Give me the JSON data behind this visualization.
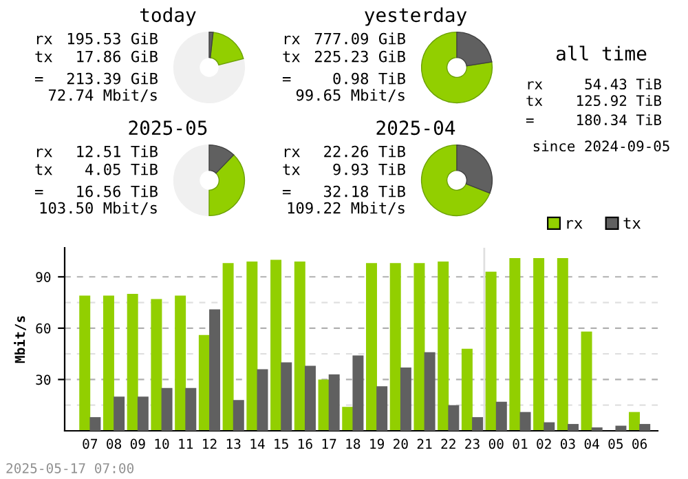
{
  "chart_data": [
    {
      "type": "donut",
      "title": "today",
      "categories": [
        null,
        null,
        null
      ],
      "values": [
        1.8,
        19.2,
        79
      ],
      "colors": [
        "#606060",
        "#92cf00",
        "#f0f0f0"
      ],
      "annotations": [
        "rx 195.53 GiB",
        "tx 17.86 GiB",
        "= 213.39 GiB",
        "72.74 Mbit/s"
      ]
    },
    {
      "type": "donut",
      "title": "yesterday",
      "categories": [
        null,
        null
      ],
      "values": [
        22.5,
        77.5
      ],
      "colors": [
        "#606060",
        "#92cf00"
      ],
      "annotations": [
        "rx 777.09 GiB",
        "tx 225.23 GiB",
        "= 0.98 TiB",
        "99.65 Mbit/s"
      ]
    },
    {
      "type": "other",
      "title": "all time",
      "annotations": [
        "rx 54.43 TiB",
        "tx 125.92 TiB",
        "= 180.34 TiB",
        "since 2024-09-05"
      ]
    },
    {
      "type": "donut",
      "title": "2025-05",
      "categories": [
        null,
        null,
        null
      ],
      "values": [
        12.2,
        37.8,
        50
      ],
      "colors": [
        "#606060",
        "#92cf00",
        "#f0f0f0"
      ],
      "annotations": [
        "rx 12.51 TiB",
        "tx 4.05 TiB",
        "= 16.56 TiB",
        "103.50 Mbit/s"
      ]
    },
    {
      "type": "donut",
      "title": "2025-04",
      "categories": [
        null,
        null
      ],
      "values": [
        30.9,
        69.1
      ],
      "colors": [
        "#606060",
        "#92cf00"
      ],
      "annotations": [
        "rx 22.26 TiB",
        "tx 9.93 TiB",
        "= 32.18 TiB",
        "109.22 Mbit/s"
      ]
    },
    {
      "type": "bar",
      "ylabel": "Mbit/s",
      "categories": [
        "07",
        "08",
        "09",
        "10",
        "11",
        "12",
        "13",
        "14",
        "15",
        "16",
        "17",
        "18",
        "19",
        "20",
        "21",
        "22",
        "23",
        "00",
        "01",
        "02",
        "03",
        "04",
        "05",
        "06"
      ],
      "series": [
        {
          "name": "rx",
          "color": "#92cf00",
          "values": [
            79,
            79,
            80,
            77,
            79,
            56,
            98,
            99,
            100,
            99,
            30,
            14,
            98,
            98,
            98,
            99,
            48,
            93,
            101,
            101,
            101,
            58,
            0,
            11
          ]
        },
        {
          "name": "tx",
          "color": "#606060",
          "values": [
            8,
            20,
            20,
            25,
            25,
            71,
            18,
            36,
            40,
            38,
            33,
            44,
            26,
            37,
            46,
            15,
            8,
            17,
            11,
            5,
            4,
            2,
            3,
            4
          ]
        }
      ],
      "ylim": [
        0,
        107
      ],
      "yticks": [
        {
          "value": 15,
          "label": null
        },
        30,
        {
          "value": 45,
          "label": null
        },
        60,
        {
          "value": 75,
          "label": null
        },
        90
      ],
      "grid": "y",
      "legend": "top right",
      "ref_lines": [
        {
          "axis": "x",
          "value": "00",
          "color": "#e0e0e0"
        }
      ],
      "annotations": [
        "2025-05-17 07:00"
      ]
    }
  ]
}
